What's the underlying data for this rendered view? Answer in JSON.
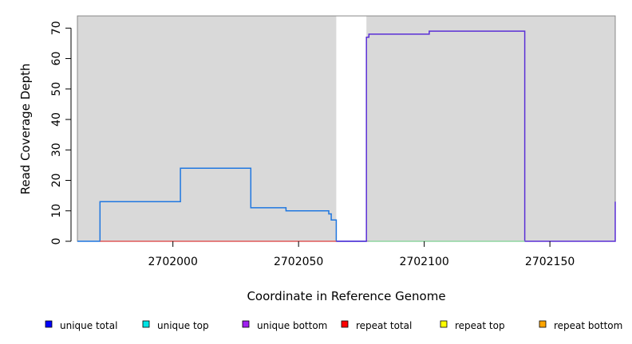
{
  "chart_data": {
    "type": "line",
    "title": "",
    "xlabel": "Coordinate in Reference Genome",
    "ylabel": "Read Coverage Depth",
    "xlim": [
      2701962,
      2702176
    ],
    "ylim": [
      0,
      74
    ],
    "x_ticks": [
      2702000,
      2702050,
      2702100,
      2702150
    ],
    "y_ticks": [
      0,
      10,
      20,
      30,
      40,
      50,
      60,
      70
    ],
    "grid": false,
    "shaded_regions": [
      {
        "from": 2701962,
        "to": 2702065,
        "color": "#d9d9d9"
      },
      {
        "from": 2702077,
        "to": 2702176,
        "color": "#d9d9d9"
      }
    ],
    "series": [
      {
        "name": "unique total",
        "color": "#1f77e0",
        "step": true,
        "points": [
          [
            2701962,
            0
          ],
          [
            2701971,
            0
          ],
          [
            2701971,
            13
          ],
          [
            2702003,
            13
          ],
          [
            2702003,
            24
          ],
          [
            2702031,
            24
          ],
          [
            2702031,
            11
          ],
          [
            2702045,
            11
          ],
          [
            2702045,
            10
          ],
          [
            2702062,
            10
          ],
          [
            2702062,
            9
          ],
          [
            2702063,
            9
          ],
          [
            2702063,
            7
          ],
          [
            2702065,
            7
          ],
          [
            2702065,
            0
          ],
          [
            2702077,
            0
          ]
        ]
      },
      {
        "name": "unique bottom",
        "color": "#5a2fd6",
        "step": true,
        "points": [
          [
            2702065,
            0
          ],
          [
            2702077,
            0
          ],
          [
            2702077,
            67
          ],
          [
            2702078,
            67
          ],
          [
            2702078,
            68
          ],
          [
            2702102,
            68
          ],
          [
            2702102,
            69
          ],
          [
            2702140,
            69
          ],
          [
            2702140,
            0
          ],
          [
            2702176,
            0
          ],
          [
            2702176,
            13
          ]
        ]
      },
      {
        "name": "repeat total",
        "color": "#e05a5a",
        "step": true,
        "points": [
          [
            2701971,
            0
          ],
          [
            2702065,
            0
          ]
        ]
      },
      {
        "name": "unique top",
        "color": "#8fd6a0",
        "step": true,
        "points": [
          [
            2702078,
            0
          ],
          [
            2702140,
            0
          ]
        ]
      }
    ],
    "legend": {
      "placement": "bottom",
      "items": [
        {
          "label": "unique total",
          "color": "#0000ff"
        },
        {
          "label": "unique top",
          "color": "#00e5e5"
        },
        {
          "label": "unique bottom",
          "color": "#a020f0"
        },
        {
          "label": "repeat total",
          "color": "#ff0000"
        },
        {
          "label": "repeat top",
          "color": "#ffff00"
        },
        {
          "label": "repeat bottom",
          "color": "#ffa500"
        }
      ]
    }
  }
}
